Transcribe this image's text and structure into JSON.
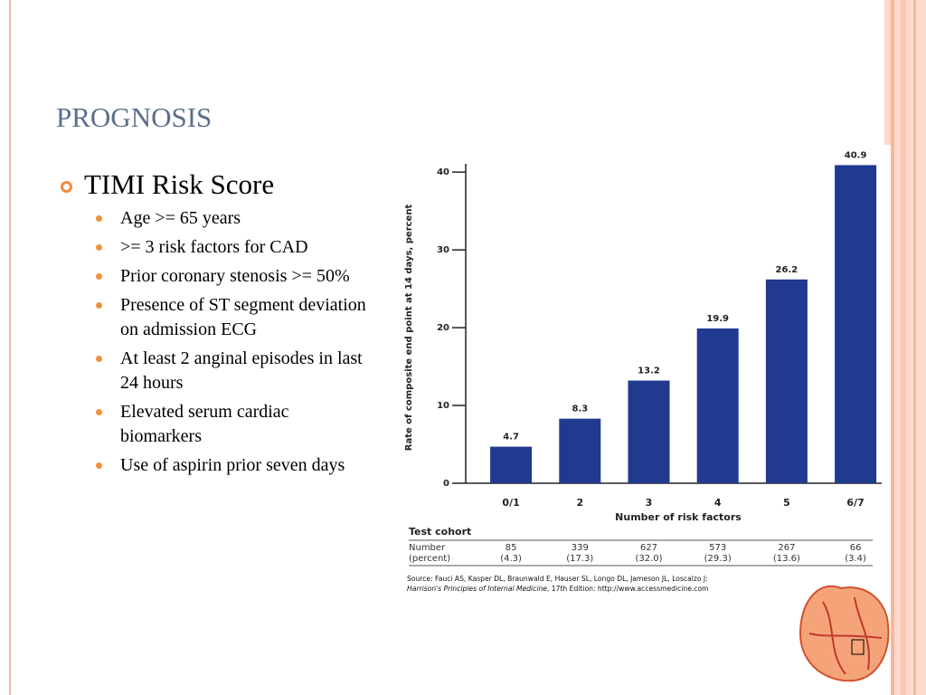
{
  "slide": {
    "title": "PROGNOSIS",
    "bullets": [
      {
        "text": "TIMI Risk Score",
        "items": [
          "Age >= 65 years",
          ">= 3 risk factors for CAD",
          "Prior coronary stenosis >= 50%",
          "Presence of ST segment deviation on admission ECG",
          "At least 2 anginal episodes in last 24 hours",
          "Elevated serum cardiac biomarkers",
          "Use of aspirin prior seven days"
        ]
      }
    ]
  },
  "chart_data": {
    "type": "bar",
    "y_label": "Rate of composite end point at 14 days, percent",
    "x_label": "Number of risk factors",
    "categories": [
      "0/1",
      "2",
      "3",
      "4",
      "5",
      "6/7"
    ],
    "values": [
      4.7,
      8.3,
      13.2,
      19.9,
      26.2,
      40.9
    ],
    "color": "#1f3a8f",
    "ylim": [
      0,
      42
    ],
    "yticks": [
      0,
      10,
      20,
      30,
      40
    ],
    "cohort": {
      "title": "Test cohort",
      "row_label": [
        "Number",
        "(percent)"
      ],
      "numbers": [
        "85",
        "339",
        "627",
        "573",
        "267",
        "66"
      ],
      "percents": [
        "(4.3)",
        "(17.3)",
        "(32.0)",
        "(29.3)",
        "(13.6)",
        "(3.4)"
      ]
    },
    "source": [
      "Source: Fauci AS, Kasper DL, Braunwald E, Hauser SL, Longo DL, Jameson JL, Loscalzo J:",
      "Harrison's Principles of Internal Medicine",
      ", 17th Edition: http://www.accessmedicine.com"
    ]
  }
}
